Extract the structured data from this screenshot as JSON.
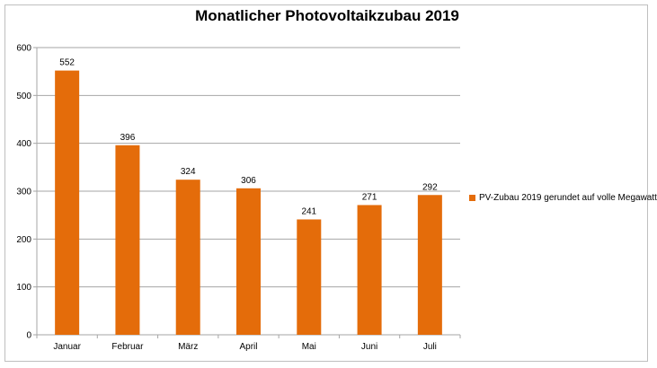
{
  "chart_data": {
    "type": "bar",
    "title": "Monatlicher Photovoltaikzubau 2019",
    "categories": [
      "Januar",
      "Februar",
      "März",
      "April",
      "Mai",
      "Juni",
      "Juli"
    ],
    "series": [
      {
        "name": "PV-Zubau 2019 gerundet auf volle Megawatt",
        "values": [
          552,
          396,
          324,
          306,
          241,
          271,
          292
        ],
        "color": "#e46c0a"
      }
    ],
    "ylim": [
      0,
      600
    ],
    "yticks": [
      0,
      100,
      200,
      300,
      400,
      500,
      600
    ],
    "grid": true,
    "legend_position": "right"
  }
}
